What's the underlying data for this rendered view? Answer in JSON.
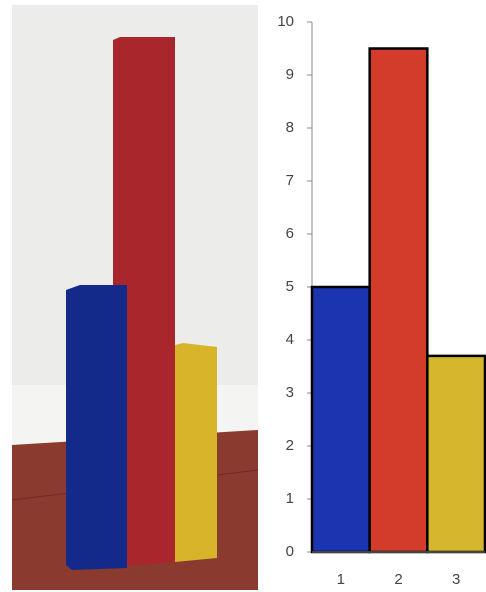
{
  "chart_data": {
    "type": "bar",
    "categories": [
      "1",
      "2",
      "3"
    ],
    "series": [
      {
        "values": [
          5,
          9.5,
          3.7
        ],
        "colors": [
          "#1b35b0",
          "#d33b2b",
          "#d5b62c"
        ]
      }
    ],
    "ylim": [
      0,
      10
    ],
    "yticks": [
      0,
      1,
      2,
      3,
      4,
      5,
      6,
      7,
      8,
      9,
      10
    ],
    "grid": false,
    "bar_outline": "#000000"
  }
}
